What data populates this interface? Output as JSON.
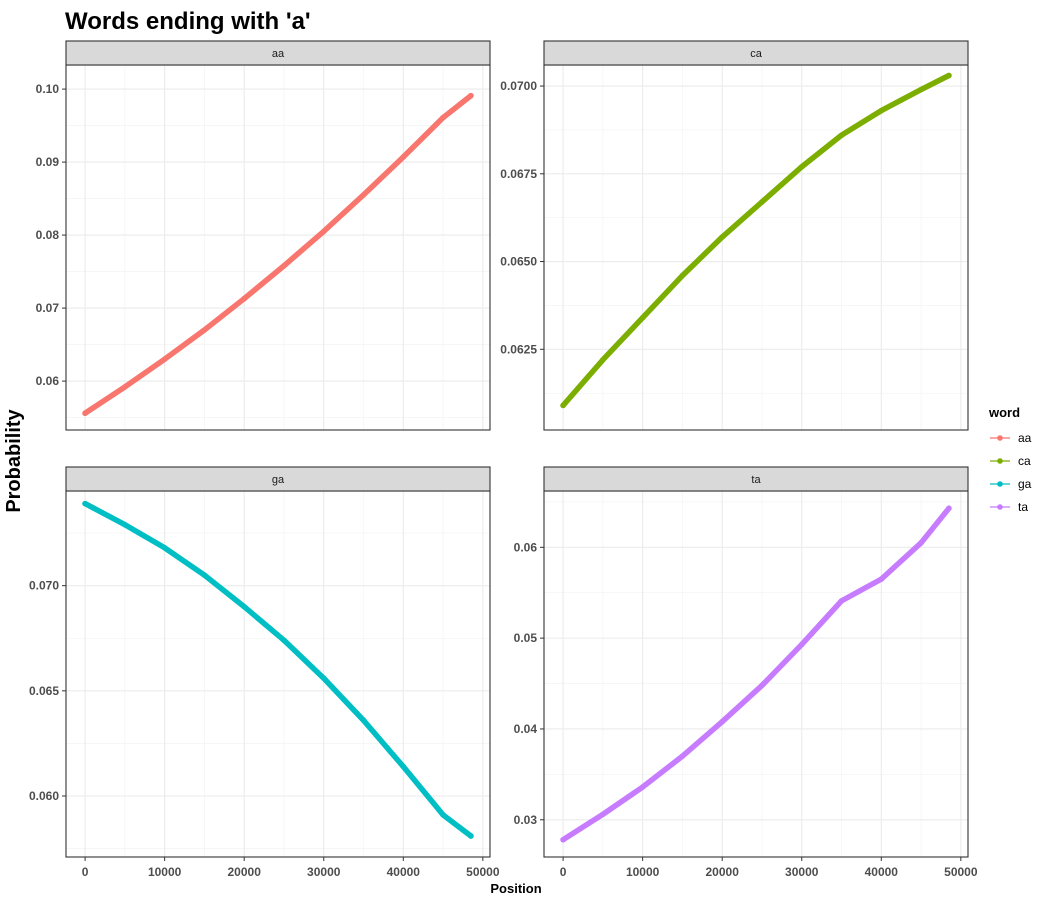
{
  "chart_data": {
    "type": "scatter",
    "title": "Words ending with 'a'",
    "xlabel": "Position",
    "ylabel": "Probability",
    "xlim": [
      -2400,
      50900
    ],
    "xticks": [
      0,
      10000,
      20000,
      30000,
      40000,
      50000
    ],
    "xtick_labels": [
      "0",
      "10000",
      "20000",
      "30000",
      "40000",
      "50000"
    ],
    "grid": true,
    "legend": {
      "title": "word",
      "position": "right",
      "entries": [
        "aa",
        "ca",
        "ga",
        "ta"
      ]
    },
    "facets": [
      {
        "label": "aa",
        "color": "#F8766D",
        "ylim": [
          0.0533,
          0.1033
        ],
        "yticks": [
          0.06,
          0.07,
          0.08,
          0.09,
          0.1
        ],
        "ytick_labels": [
          "0.06",
          "0.07",
          "0.08",
          "0.09",
          "0.10"
        ],
        "x": [
          0,
          5000,
          10000,
          15000,
          20000,
          25000,
          30000,
          35000,
          40000,
          45000,
          48500
        ],
        "y": [
          0.0556,
          0.0592,
          0.063,
          0.067,
          0.0713,
          0.0758,
          0.0805,
          0.0855,
          0.0907,
          0.0961,
          0.0991
        ]
      },
      {
        "label": "ca",
        "color": "#7CAE00",
        "ylim": [
          0.0602,
          0.0706
        ],
        "yticks": [
          0.0625,
          0.065,
          0.0675,
          0.07
        ],
        "ytick_labels": [
          "0.0625",
          "0.0650",
          "0.0675",
          "0.0700"
        ],
        "x": [
          0,
          5000,
          10000,
          15000,
          20000,
          25000,
          30000,
          35000,
          40000,
          45000,
          48500
        ],
        "y": [
          0.0609,
          0.0622,
          0.0634,
          0.0646,
          0.0657,
          0.0667,
          0.0677,
          0.0686,
          0.0693,
          0.0699,
          0.0703
        ]
      },
      {
        "label": "ga",
        "color": "#00BFC4",
        "ylim": [
          0.0571,
          0.0745
        ],
        "yticks": [
          0.06,
          0.065,
          0.07
        ],
        "ytick_labels": [
          "0.060",
          "0.065",
          "0.070"
        ],
        "x": [
          0,
          5000,
          10000,
          15000,
          20000,
          25000,
          30000,
          35000,
          40000,
          45000,
          48500
        ],
        "y": [
          0.0739,
          0.0729,
          0.0718,
          0.0705,
          0.069,
          0.0674,
          0.0656,
          0.0636,
          0.0614,
          0.0591,
          0.0581
        ]
      },
      {
        "label": "ta",
        "color": "#C77CFF",
        "ylim": [
          0.0259,
          0.0662
        ],
        "yticks": [
          0.03,
          0.04,
          0.05,
          0.06
        ],
        "ytick_labels": [
          "0.03",
          "0.04",
          "0.05",
          "0.06"
        ],
        "x": [
          0,
          5000,
          10000,
          15000,
          20000,
          25000,
          30000,
          35000,
          40000,
          45000,
          48500
        ],
        "y": [
          0.0278,
          0.0306,
          0.0336,
          0.037,
          0.0408,
          0.0448,
          0.0493,
          0.0541,
          0.0565,
          0.0605,
          0.0643
        ]
      }
    ]
  }
}
